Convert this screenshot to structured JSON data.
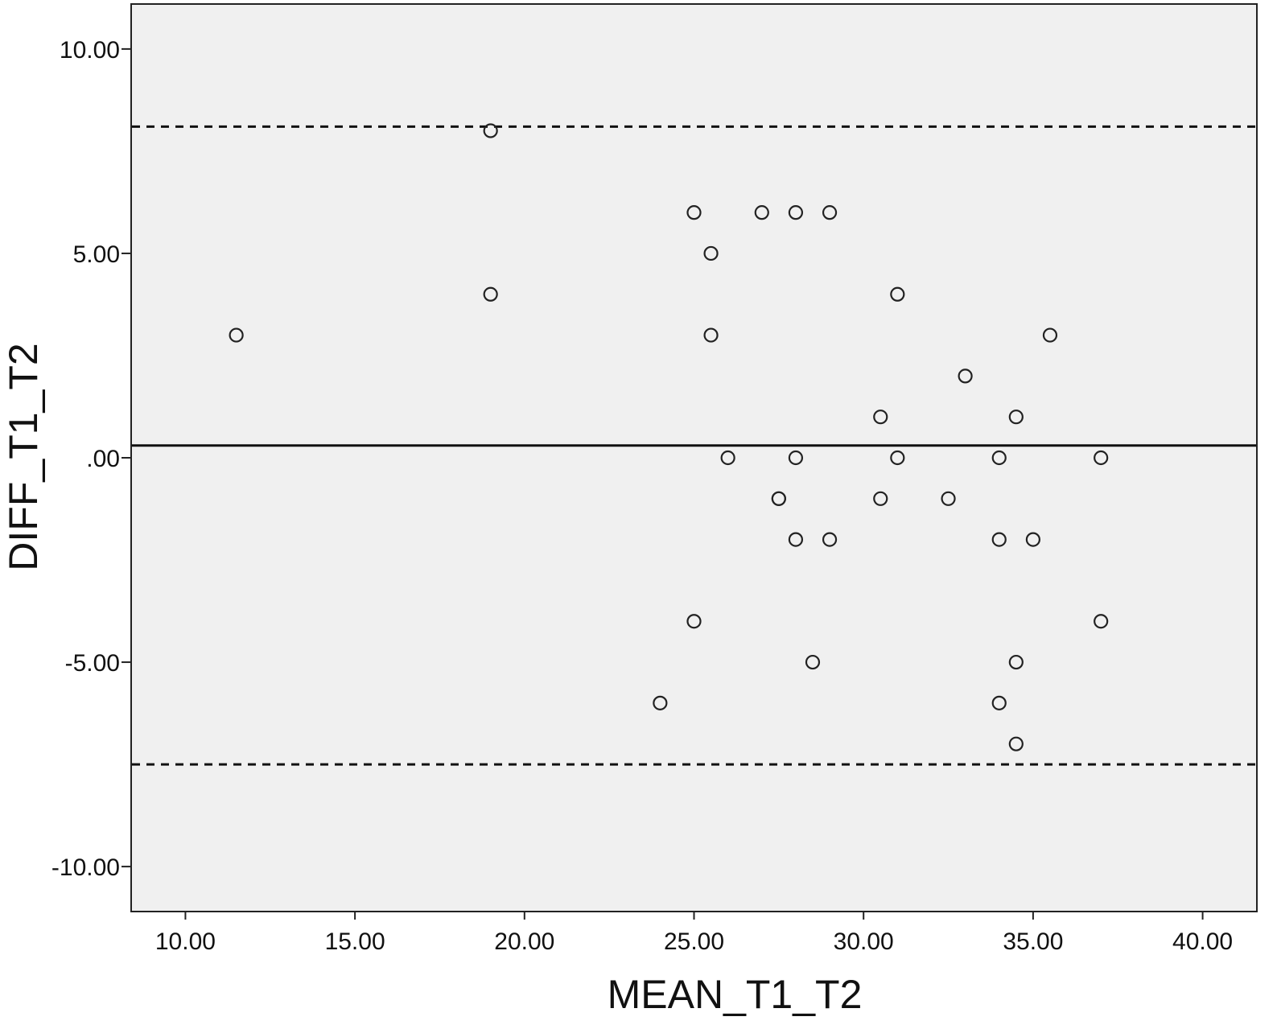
{
  "chart_data": {
    "type": "scatter",
    "title": "",
    "xlabel": "MEAN_T1_T2",
    "ylabel": "DIFF_T1_T2",
    "xlim": [
      8.4,
      41.6
    ],
    "ylim": [
      -11.1,
      11.1
    ],
    "xticks": [
      10,
      15,
      20,
      25,
      30,
      35,
      40
    ],
    "xtick_labels": [
      "10.00",
      "15.00",
      "20.00",
      "25.00",
      "30.00",
      "35.00",
      "40.00"
    ],
    "yticks": [
      10,
      5,
      0,
      -5,
      -10
    ],
    "ytick_labels": [
      "10.00",
      "5.00",
      ".00",
      "-5.00",
      "-10.00"
    ],
    "grid": false,
    "background_color": "#f0f0f0",
    "marker_color": "#222222",
    "reference_lines": [
      {
        "y": 0.3,
        "style": "solid"
      },
      {
        "y": 8.1,
        "style": "dashed"
      },
      {
        "y": -7.5,
        "style": "dashed"
      }
    ],
    "points": [
      [
        11.5,
        3
      ],
      [
        19,
        8
      ],
      [
        19,
        4
      ],
      [
        25,
        6
      ],
      [
        27,
        6
      ],
      [
        28,
        6
      ],
      [
        29,
        6
      ],
      [
        25.5,
        5
      ],
      [
        31,
        4
      ],
      [
        25.5,
        3
      ],
      [
        35.5,
        3
      ],
      [
        33,
        2
      ],
      [
        30.5,
        1
      ],
      [
        34.5,
        1
      ],
      [
        26,
        0
      ],
      [
        28,
        0
      ],
      [
        31,
        0
      ],
      [
        34,
        0
      ],
      [
        37,
        0
      ],
      [
        27.5,
        -1
      ],
      [
        27.5,
        -1
      ],
      [
        30.5,
        -1
      ],
      [
        32.5,
        -1
      ],
      [
        28,
        -2
      ],
      [
        29,
        -2
      ],
      [
        34,
        -2
      ],
      [
        35,
        -2
      ],
      [
        25,
        -4
      ],
      [
        37,
        -4
      ],
      [
        28.5,
        -5
      ],
      [
        34.5,
        -5
      ],
      [
        24,
        -6
      ],
      [
        34,
        -6
      ],
      [
        34.5,
        -7
      ]
    ]
  }
}
